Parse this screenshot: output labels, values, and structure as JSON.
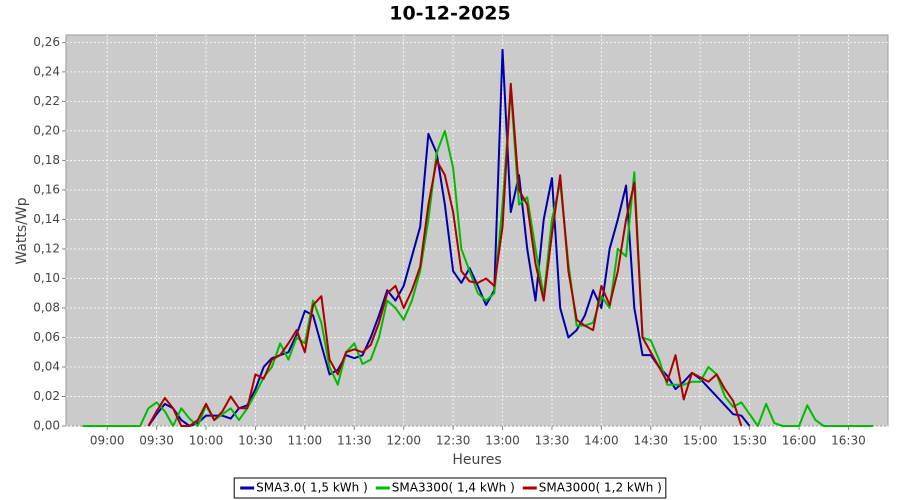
{
  "chart_data": {
    "type": "line",
    "title": "10-12-2025",
    "x_label": "Heures",
    "y_label": "Watts/Wp",
    "x": [
      "08:45",
      "08:50",
      "08:55",
      "09:00",
      "09:05",
      "09:10",
      "09:15",
      "09:20",
      "09:25",
      "09:30",
      "09:35",
      "09:40",
      "09:45",
      "09:50",
      "09:55",
      "10:00",
      "10:05",
      "10:10",
      "10:15",
      "10:20",
      "10:25",
      "10:30",
      "10:35",
      "10:40",
      "10:45",
      "10:50",
      "10:55",
      "11:00",
      "11:05",
      "11:10",
      "11:15",
      "11:20",
      "11:25",
      "11:30",
      "11:35",
      "11:40",
      "11:45",
      "11:50",
      "11:55",
      "12:00",
      "12:05",
      "12:10",
      "12:15",
      "12:20",
      "12:25",
      "12:30",
      "12:35",
      "12:40",
      "12:45",
      "12:50",
      "12:55",
      "13:00",
      "13:05",
      "13:10",
      "13:15",
      "13:20",
      "13:25",
      "13:30",
      "13:35",
      "13:40",
      "13:45",
      "13:50",
      "13:55",
      "14:00",
      "14:05",
      "14:10",
      "14:15",
      "14:20",
      "14:25",
      "14:30",
      "14:35",
      "14:40",
      "14:45",
      "14:50",
      "14:55",
      "15:00",
      "15:05",
      "15:10",
      "15:15",
      "15:20",
      "15:25",
      "15:30",
      "15:35",
      "15:40",
      "15:45",
      "15:50",
      "15:55",
      "16:00",
      "16:05",
      "16:10",
      "16:15",
      "16:20",
      "16:25",
      "16:30",
      "16:35",
      "16:40",
      "16:45"
    ],
    "xlim": [
      "08:35",
      "16:54"
    ],
    "xticks": [
      "09:00",
      "09:30",
      "10:00",
      "10:30",
      "11:00",
      "11:30",
      "12:00",
      "12:30",
      "13:00",
      "13:30",
      "14:00",
      "14:30",
      "15:00",
      "15:30",
      "16:00",
      "16:30"
    ],
    "ylim": [
      0,
      0.265
    ],
    "yticks": [
      {
        "value": 0,
        "label": "0,00"
      },
      {
        "value": 0.02,
        "label": "0,02"
      },
      {
        "value": 0.04,
        "label": "0,04"
      },
      {
        "value": 0.06,
        "label": "0,06"
      },
      {
        "value": 0.08,
        "label": "0,08"
      },
      {
        "value": 0.1,
        "label": "0,10"
      },
      {
        "value": 0.12,
        "label": "0,12"
      },
      {
        "value": 0.14,
        "label": "0,14"
      },
      {
        "value": 0.16,
        "label": "0,16"
      },
      {
        "value": 0.18,
        "label": "0,18"
      },
      {
        "value": 0.2,
        "label": "0,20"
      },
      {
        "value": 0.22,
        "label": "0,22"
      },
      {
        "value": 0.24,
        "label": "0,24"
      },
      {
        "value": 0.26,
        "label": "0,26"
      }
    ],
    "grid": true,
    "legend_position": "bottom",
    "series": [
      {
        "name": "SMA3.0( 1,5 kWh )",
        "color": "#0000aa",
        "values": [
          null,
          null,
          null,
          null,
          null,
          null,
          null,
          null,
          0,
          0.008,
          0.015,
          0.012,
          0.004,
          0,
          0.002,
          0.007,
          0.007,
          0.007,
          0.005,
          0.012,
          0.014,
          0.025,
          0.04,
          0.046,
          0.048,
          0.05,
          0.062,
          0.078,
          0.075,
          0.055,
          0.035,
          0.038,
          0.048,
          0.046,
          0.048,
          0.06,
          0.075,
          0.092,
          0.085,
          0.095,
          0.115,
          0.135,
          0.198,
          0.185,
          0.15,
          0.105,
          0.097,
          0.107,
          0.095,
          0.082,
          0.092,
          0.255,
          0.145,
          0.17,
          0.12,
          0.085,
          0.14,
          0.168,
          0.08,
          0.06,
          0.065,
          0.075,
          0.092,
          0.08,
          0.12,
          0.14,
          0.163,
          0.08,
          0.048,
          0.048,
          0.04,
          0.034,
          0.025,
          0.03,
          0.036,
          0.032,
          0.026,
          0.02,
          0.014,
          0.008,
          0.007,
          0,
          null,
          null,
          null,
          null,
          null,
          null,
          null,
          null,
          null,
          null,
          null,
          null,
          null,
          null,
          null
        ]
      },
      {
        "name": "SMA3300( 1,4 kWh )",
        "color": "#00bb00",
        "values": [
          0,
          0,
          0,
          0,
          0,
          0,
          0,
          0,
          0.012,
          0.016,
          0.01,
          0,
          0.012,
          0.005,
          0,
          0.014,
          0.004,
          0.008,
          0.012,
          0.004,
          0.012,
          0.022,
          0.033,
          0.04,
          0.056,
          0.045,
          0.06,
          0.056,
          0.085,
          0.07,
          0.04,
          0.028,
          0.05,
          0.056,
          0.042,
          0.045,
          0.06,
          0.085,
          0.08,
          0.072,
          0.085,
          0.105,
          0.14,
          0.185,
          0.2,
          0.175,
          0.12,
          0.105,
          0.09,
          0.085,
          0.09,
          0.15,
          0.228,
          0.15,
          0.155,
          0.12,
          0.088,
          0.14,
          0.165,
          0.11,
          0.068,
          0.068,
          0.07,
          0.088,
          0.08,
          0.12,
          0.115,
          0.172,
          0.06,
          0.058,
          0.045,
          0.028,
          0.028,
          0.028,
          0.03,
          0.03,
          0.04,
          0.035,
          0.02,
          0.013,
          0.016,
          0.008,
          0,
          0.015,
          0.002,
          0,
          0,
          0,
          0.014,
          0.004,
          0,
          0,
          0,
          0,
          0,
          0,
          0
        ]
      },
      {
        "name": "SMA3000( 1,2 kWh )",
        "color": "#aa0000",
        "values": [
          null,
          null,
          null,
          null,
          null,
          null,
          null,
          null,
          0,
          0.01,
          0.019,
          0.012,
          0,
          0,
          0.004,
          0.015,
          0.004,
          0.01,
          0.02,
          0.012,
          0.012,
          0.035,
          0.032,
          0.045,
          0.048,
          0.056,
          0.065,
          0.05,
          0.082,
          0.088,
          0.045,
          0.035,
          0.05,
          0.052,
          0.05,
          0.055,
          0.07,
          0.09,
          0.095,
          0.08,
          0.092,
          0.108,
          0.15,
          0.18,
          0.17,
          0.145,
          0.105,
          0.098,
          0.097,
          0.1,
          0.095,
          0.135,
          0.232,
          0.16,
          0.15,
          0.11,
          0.085,
          0.13,
          0.17,
          0.105,
          0.072,
          0.068,
          0.065,
          0.095,
          0.082,
          0.105,
          0.14,
          0.165,
          0.06,
          0.05,
          0.04,
          0.03,
          0.048,
          0.018,
          0.036,
          0.033,
          0.03,
          0.035,
          0.025,
          0.017,
          0,
          null,
          null,
          null,
          null,
          null,
          null,
          null,
          null,
          null,
          null,
          null,
          null,
          null,
          null,
          null,
          null
        ]
      }
    ]
  }
}
